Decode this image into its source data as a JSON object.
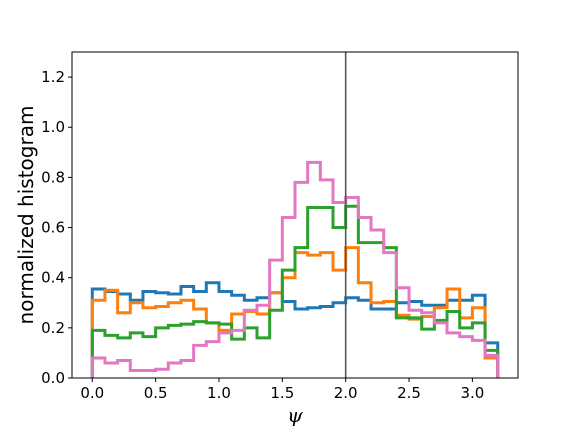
{
  "chart_data": {
    "type": "step",
    "xlabel": "ψ",
    "ylabel": "normalized histogram",
    "xlim": [
      -0.16,
      3.36
    ],
    "ylim": [
      0.0,
      1.3
    ],
    "xticks": [
      "0.0",
      "0.5",
      "1.0",
      "1.5",
      "2.0",
      "2.5",
      "3.0"
    ],
    "yticks": [
      "0.0",
      "0.2",
      "0.4",
      "0.6",
      "0.8",
      "1.0",
      "1.2"
    ],
    "vline_x": 2.0,
    "vline_color": "#555555",
    "grid": false,
    "legend": false,
    "bin_edges": [
      0.0,
      0.1,
      0.2,
      0.3,
      0.4,
      0.5,
      0.6,
      0.7,
      0.8,
      0.9,
      1.0,
      1.1,
      1.2,
      1.3,
      1.4,
      1.5,
      1.6,
      1.7,
      1.8,
      1.9,
      2.0,
      2.1,
      2.2,
      2.3,
      2.4,
      2.5,
      2.6,
      2.7,
      2.8,
      2.9,
      3.0,
      3.1,
      3.2
    ],
    "series": [
      {
        "color": "#1f77b4",
        "values": [
          0.355,
          0.345,
          0.335,
          0.31,
          0.345,
          0.34,
          0.335,
          0.365,
          0.345,
          0.38,
          0.345,
          0.33,
          0.31,
          0.32,
          0.34,
          0.305,
          0.275,
          0.28,
          0.285,
          0.3,
          0.32,
          0.31,
          0.275,
          0.275,
          0.3,
          0.305,
          0.29,
          0.29,
          0.31,
          0.31,
          0.33,
          0.14
        ]
      },
      {
        "color": "#ff7f0e",
        "values": [
          0.31,
          0.35,
          0.26,
          0.3,
          0.28,
          0.285,
          0.3,
          0.31,
          0.275,
          0.22,
          0.19,
          0.255,
          0.265,
          0.255,
          0.34,
          0.4,
          0.5,
          0.49,
          0.5,
          0.43,
          0.52,
          0.38,
          0.3,
          0.305,
          0.25,
          0.235,
          0.245,
          0.28,
          0.355,
          0.24,
          0.28,
          0.08
        ]
      },
      {
        "color": "#2ca02c",
        "values": [
          0.19,
          0.17,
          0.16,
          0.18,
          0.165,
          0.2,
          0.21,
          0.215,
          0.225,
          0.22,
          0.215,
          0.155,
          0.2,
          0.16,
          0.27,
          0.43,
          0.52,
          0.68,
          0.68,
          0.6,
          0.685,
          0.54,
          0.54,
          0.52,
          0.24,
          0.24,
          0.195,
          0.23,
          0.265,
          0.2,
          0.22,
          0.11
        ]
      },
      {
        "color": "#e377c2",
        "values": [
          0.08,
          0.06,
          0.07,
          0.03,
          0.03,
          0.035,
          0.06,
          0.07,
          0.13,
          0.145,
          0.18,
          0.19,
          0.27,
          0.29,
          0.47,
          0.64,
          0.78,
          0.86,
          0.79,
          0.7,
          0.72,
          0.64,
          0.59,
          0.5,
          0.36,
          0.27,
          0.26,
          0.22,
          0.18,
          0.165,
          0.15,
          0.09
        ]
      }
    ]
  }
}
